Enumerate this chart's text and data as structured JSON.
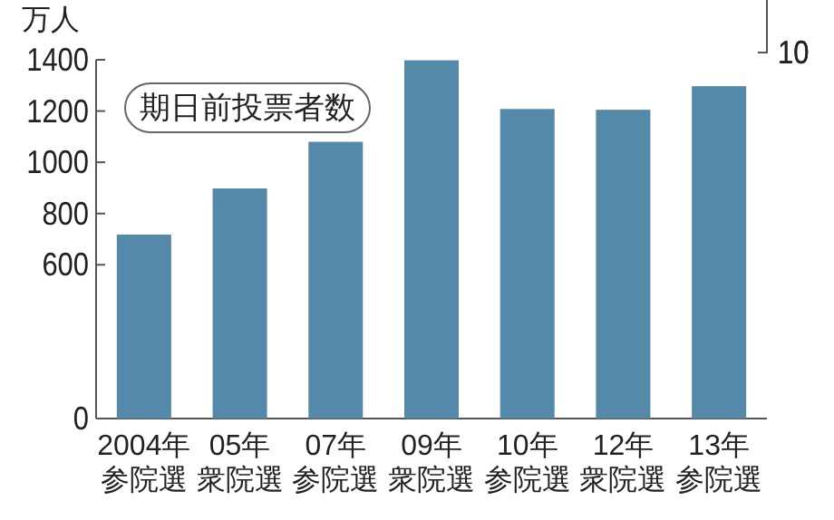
{
  "chart_data": {
    "type": "bar",
    "ylabel": "万人",
    "categories": [
      "2004年参院選",
      "05年衆院選",
      "07年参院選",
      "09年衆院選",
      "10年参院選",
      "12年衆院選",
      "13年参院選"
    ],
    "series": [
      {
        "name": "期日前投票者数",
        "color": "#5589aa",
        "values": [
          718,
          898,
          1080,
          1398,
          1208,
          1205,
          1297
        ]
      }
    ],
    "ylim": [
      0,
      1400
    ],
    "yticks": [
      0,
      600,
      800,
      1000,
      1200,
      1400
    ],
    "annotations": [
      "10"
    ],
    "legend": "top left"
  }
}
